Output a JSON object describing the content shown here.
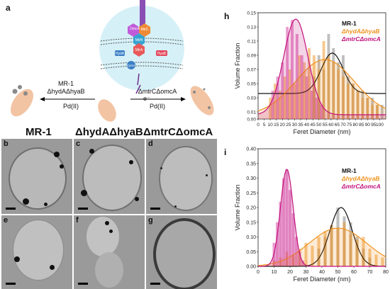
{
  "panel_a": {
    "label": "a",
    "left_group": {
      "line1": "MR-1",
      "line2": "ΔhydAΔhyaB",
      "line3": "Pd(II)"
    },
    "right_group": {
      "line1": "ΔmtrCΔomcA",
      "line2": "Pd(II)"
    },
    "proteins": [
      "OmcA",
      "MtrC",
      "MtrB",
      "MtrA",
      "HydA",
      "HyaB",
      "CymA"
    ],
    "electron": "e⁻"
  },
  "tem": {
    "column_headers": [
      "MR-1",
      "ΔhydAΔhyaB",
      "ΔmtrCΔomcA"
    ],
    "panels": [
      "b",
      "c",
      "d",
      "e",
      "f",
      "g"
    ]
  },
  "colors": {
    "mr1": "#111111",
    "hyd": "#f0921e",
    "mtr": "#c2127d"
  },
  "chart_data": [
    {
      "panel": "h",
      "type": "bar",
      "xlabel": "Feret Diameter (nm)",
      "ylabel": "Volume Fraction",
      "xlim": [
        0,
        105
      ],
      "ylim": [
        0,
        0.15
      ],
      "xticks": [
        "0",
        "5",
        "10",
        "15",
        "20",
        "25",
        "30",
        "35",
        "40",
        "45",
        "50",
        "55",
        "60",
        "65",
        "70",
        "75",
        "80",
        "85",
        "90",
        "95",
        "100"
      ],
      "yticks": [
        "0.00",
        "0.01",
        "0.03",
        "0.05",
        "0.07",
        "0.09",
        "0.11",
        "0.13",
        "0.15"
      ],
      "legend": [
        "MR-1",
        "ΔhydAΔhyaB",
        "ΔmtrCΔomcA"
      ],
      "legend_position": "top-right",
      "bin_width": 2.5,
      "series": [
        {
          "name": "MR-1",
          "color": "#888888",
          "x": [
            46,
            50,
            54,
            58,
            62,
            66,
            70,
            74,
            78,
            82,
            86,
            90,
            94,
            98,
            102
          ],
          "values": [
            0.06,
            0.09,
            0.07,
            0.12,
            0.1,
            0.08,
            0.09,
            0.06,
            0.05,
            0.04,
            0.04,
            0.03,
            0.03,
            0.02,
            0.02
          ],
          "fit_mu": 61,
          "fit_sigma": 9,
          "fit_amp": 0.057,
          "fit_base": 0.036
        },
        {
          "name": "ΔhydAΔhyaB",
          "color": "#f0921e",
          "x": [
            10,
            14,
            18,
            22,
            26,
            30,
            34,
            38,
            42,
            46,
            50,
            54,
            58,
            62,
            66,
            70,
            74,
            78,
            82,
            86,
            90,
            94,
            98
          ],
          "values": [
            0.03,
            0.05,
            0.04,
            0.06,
            0.07,
            0.05,
            0.09,
            0.08,
            0.1,
            0.09,
            0.07,
            0.11,
            0.09,
            0.08,
            0.07,
            0.06,
            0.05,
            0.05,
            0.04,
            0.03,
            0.03,
            0.02,
            0.02
          ],
          "fit_mu": 55,
          "fit_sigma": 24,
          "fit_amp": 0.078,
          "fit_base": 0.006
        },
        {
          "name": "ΔmtrCΔomcA",
          "color": "#d63ba0",
          "x": [
            12,
            16,
            20,
            24,
            28,
            32,
            36,
            40,
            44,
            48,
            52
          ],
          "values": [
            0.04,
            0.06,
            0.08,
            0.13,
            0.14,
            0.12,
            0.09,
            0.06,
            0.04,
            0.03,
            0.02
          ],
          "fit_mu": 31,
          "fit_sigma": 10,
          "fit_amp": 0.135,
          "fit_base": 0.006
        }
      ]
    },
    {
      "panel": "i",
      "type": "bar",
      "xlabel": "Feret Diameter (nm)",
      "ylabel": "Volume Fraction",
      "xlim": [
        0,
        80
      ],
      "ylim": [
        0,
        0.4
      ],
      "xticks": [
        "0",
        "10",
        "20",
        "30",
        "40",
        "50",
        "60",
        "70",
        "80"
      ],
      "yticks": [
        "0.00",
        "0.05",
        "0.10",
        "0.15",
        "0.20",
        "0.25",
        "0.30",
        "0.35",
        "0.40"
      ],
      "legend": [
        "MR-1",
        "ΔhydAΔhyaB",
        "ΔmtrCΔomcA"
      ],
      "legend_position": "top-right",
      "bin_width": 2,
      "series": [
        {
          "name": "MR-1",
          "color": "#888888",
          "x": [
            38,
            42,
            46,
            50,
            54,
            58,
            62,
            66,
            70
          ],
          "values": [
            0.06,
            0.1,
            0.14,
            0.2,
            0.17,
            0.15,
            0.1,
            0.06,
            0.03
          ],
          "fit_mu": 52,
          "fit_sigma": 7,
          "fit_amp": 0.2,
          "fit_base": 0
        },
        {
          "name": "ΔhydAΔhyaB",
          "color": "#f0921e",
          "x": [
            10,
            14,
            18,
            22,
            26,
            30,
            34,
            38,
            42,
            46,
            50,
            54,
            58,
            62,
            66,
            70,
            74,
            78
          ],
          "values": [
            0.02,
            0.03,
            0.05,
            0.04,
            0.06,
            0.08,
            0.07,
            0.1,
            0.12,
            0.14,
            0.13,
            0.15,
            0.11,
            0.09,
            0.1,
            0.06,
            0.04,
            0.03
          ],
          "fit_mu": 50,
          "fit_sigma": 18,
          "fit_amp": 0.13,
          "fit_base": 0
        },
        {
          "name": "ΔmtrCΔomcA",
          "color": "#d63ba0",
          "x": [
            10,
            12,
            14,
            16,
            18,
            20,
            22,
            24,
            26,
            28
          ],
          "values": [
            0.08,
            0.15,
            0.22,
            0.3,
            0.33,
            0.26,
            0.18,
            0.1,
            0.05,
            0.02
          ],
          "fit_mu": 18,
          "fit_sigma": 4,
          "fit_amp": 0.33,
          "fit_base": 0
        }
      ]
    }
  ]
}
